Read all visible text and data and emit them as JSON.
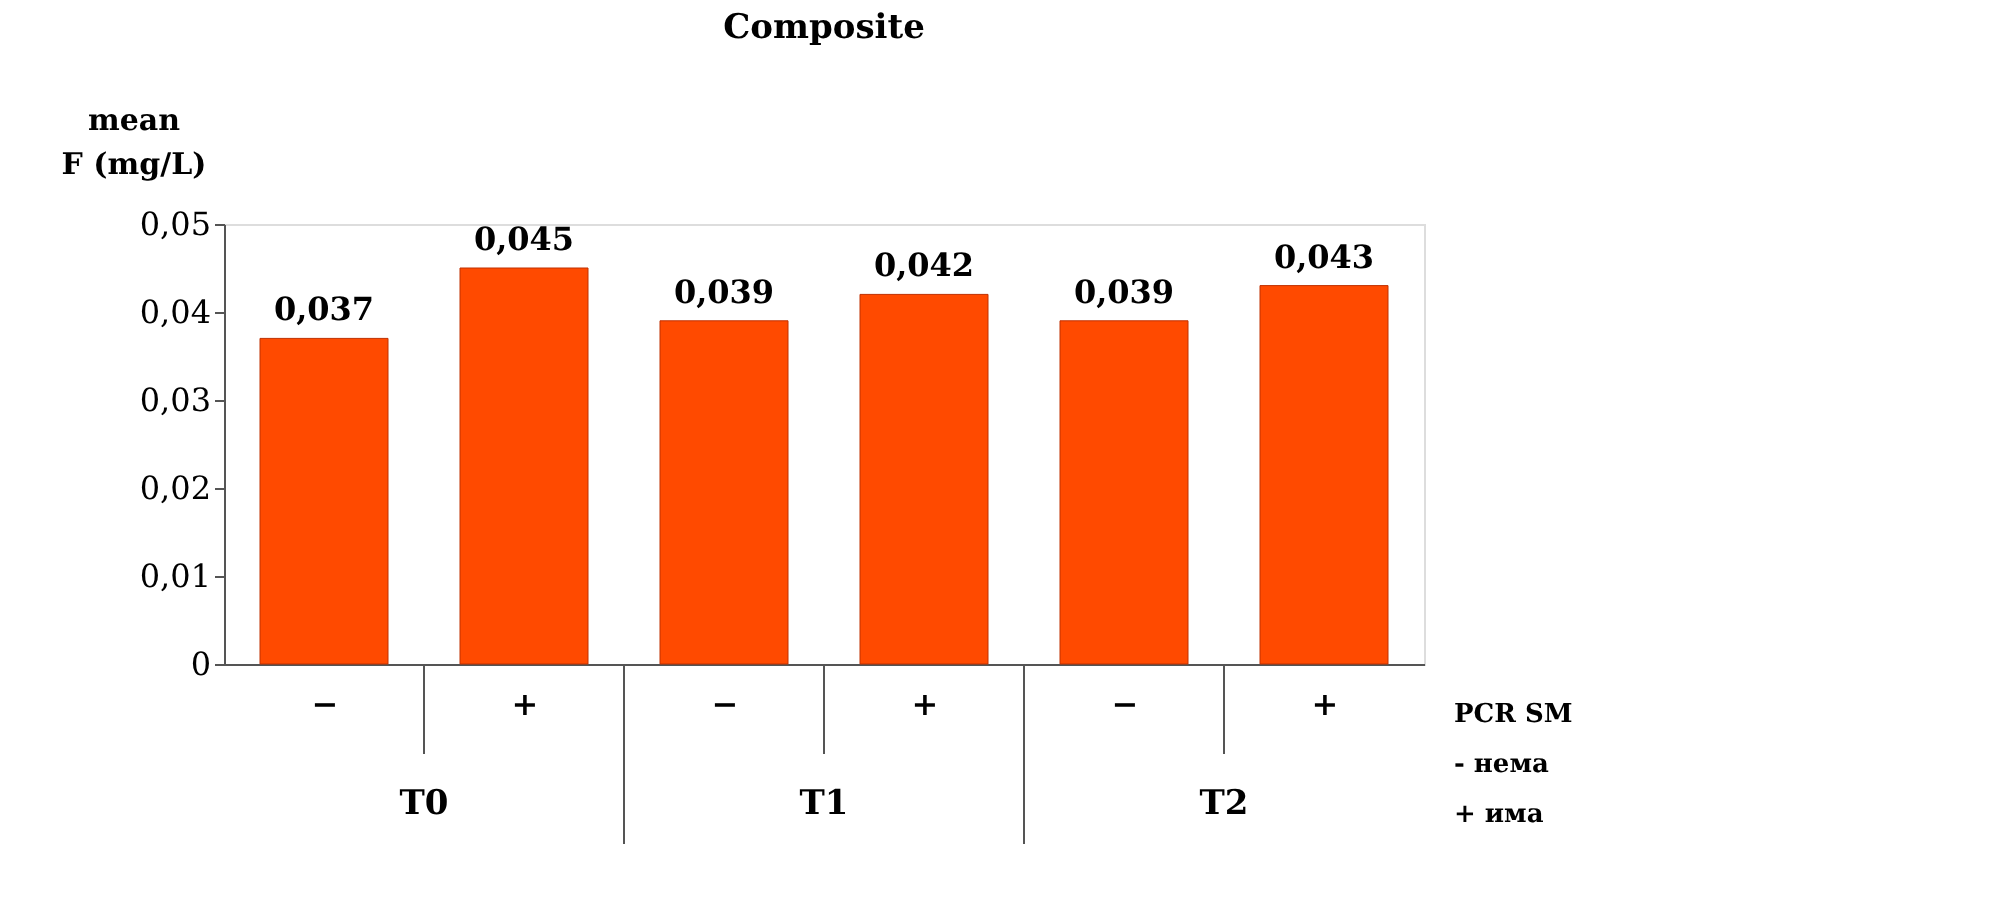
{
  "chart_data": {
    "type": "bar",
    "title": "Composite",
    "ylabel": "mean F (mg/L)",
    "categories": [
      "−",
      "+",
      "−",
      "+",
      "−",
      "+"
    ],
    "values": [
      0.037,
      0.045,
      0.039,
      0.042,
      0.039,
      0.043
    ],
    "value_labels": [
      "0,037",
      "0,045",
      "0,039",
      "0,042",
      "0,039",
      "0,043"
    ],
    "color": "#ff4a00",
    "ylim": [
      0,
      0.05
    ],
    "yticks": [
      0,
      {
        "value": 0.01,
        "label": "0,01"
      },
      {
        "value": 0.02,
        "label": "0,02"
      },
      {
        "value": 0.03,
        "label": "0,03"
      },
      {
        "value": 0.04,
        "label": "0,04"
      },
      {
        "value": 0.05,
        "label": "0,05"
      }
    ],
    "annotations": [
      "T0",
      "T1",
      "T2",
      "PCR SM",
      "- нема",
      "+ има"
    ],
    "grid": false
  }
}
